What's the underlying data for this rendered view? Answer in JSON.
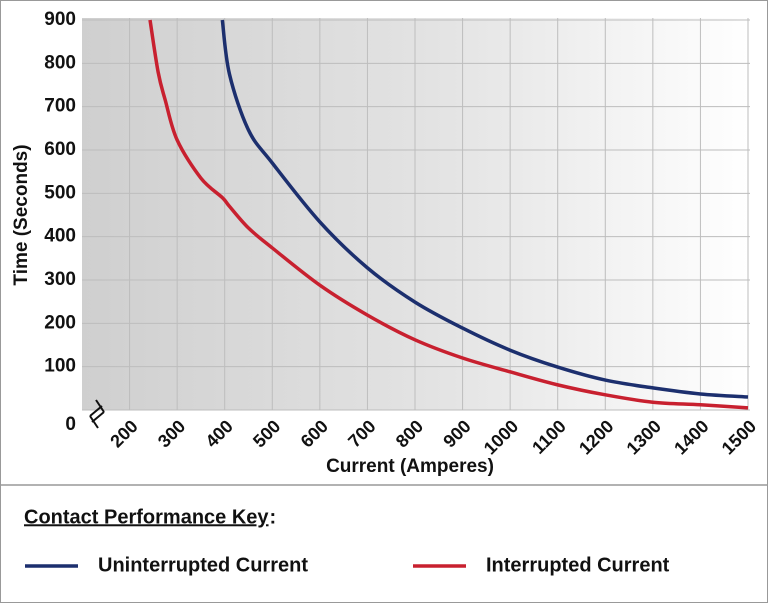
{
  "chart_data": {
    "type": "line",
    "x_label": "Current (Amperes)",
    "y_label": "Time (Seconds)",
    "x": [
      243,
      260,
      275,
      300,
      350,
      395,
      410,
      450,
      500,
      600,
      700,
      800,
      900,
      1000,
      1100,
      1200,
      1300,
      1400,
      1500
    ],
    "series": [
      {
        "name": "Uninterrupted Current",
        "color": "#1c2f6e",
        "values": [
          null,
          null,
          null,
          null,
          null,
          900,
          775,
          646,
          570,
          434,
          328,
          249,
          189,
          138,
          99,
          69,
          51,
          37,
          30
        ]
      },
      {
        "name": "Interrupted Current",
        "color": "#c8202f",
        "values": [
          900,
          780,
          715,
          623,
          535,
          490,
          470,
          420,
          374,
          288,
          219,
          162,
          120,
          88,
          58,
          35,
          18,
          12,
          5
        ]
      }
    ],
    "xlim": [
      100,
      1500
    ],
    "ylim": [
      0,
      900
    ],
    "xticks": [
      200,
      300,
      400,
      500,
      600,
      700,
      800,
      900,
      1000,
      1100,
      1200,
      1300,
      1400,
      1500
    ],
    "yticks": [
      0,
      100,
      200,
      300,
      400,
      500,
      600,
      700,
      800,
      900
    ],
    "grid": true,
    "x_axis_break": true,
    "legend_title": "Contact Performance Key",
    "legend_title_suffix": ":"
  }
}
